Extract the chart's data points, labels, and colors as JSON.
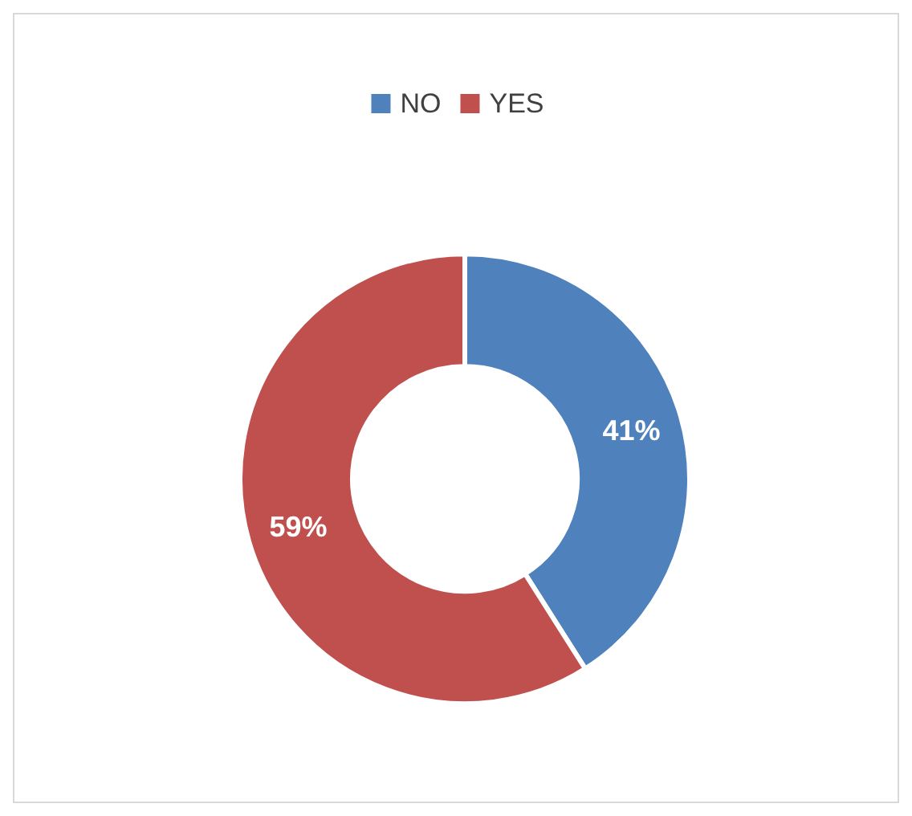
{
  "chart_data": {
    "type": "donut",
    "categories": [
      "NO",
      "YES"
    ],
    "values": [
      41,
      59
    ],
    "colors": [
      "#4f81bd",
      "#c0504d"
    ],
    "value_labels": [
      "41%",
      "59%"
    ],
    "legend": "top"
  }
}
